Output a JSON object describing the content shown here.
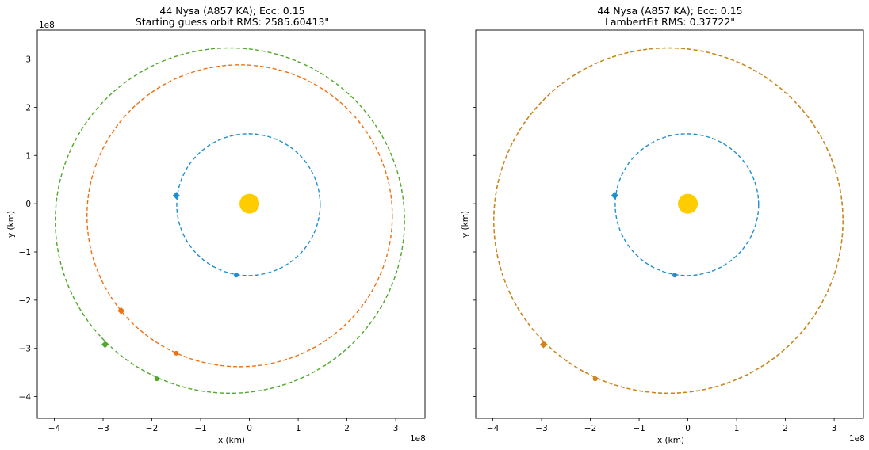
{
  "chart_data": [
    {
      "type": "scatter",
      "title_line1": "44 Nysa (A857 KA); Ecc: 0.15",
      "title_line2": "Starting guess orbit RMS: 2585.60413\"",
      "xlabel": "x (km)",
      "ylabel": "y (km)",
      "x_offset_label": "1e8",
      "y_offset_label": "1e8",
      "xlim": [
        -4.35,
        3.6
      ],
      "ylim": [
        -4.45,
        3.6
      ],
      "xticks": [
        -4,
        -3,
        -2,
        -1,
        0,
        1,
        2,
        3
      ],
      "yticks": [
        -4,
        -3,
        -2,
        -1,
        0,
        1,
        2,
        3
      ],
      "xtick_labels": [
        "−4",
        "−3",
        "−2",
        "−1",
        "0",
        "1",
        "2",
        "3"
      ],
      "ytick_labels": [
        "−4",
        "−3",
        "−2",
        "−1",
        "0",
        "1",
        "2",
        "3"
      ],
      "show_y_ticklabels": true,
      "sun": {
        "x": 0,
        "y": 0,
        "color": "#ffcc00"
      },
      "orbits": [
        {
          "color": "#1f8fcc",
          "cx": -0.02,
          "cy": -0.02,
          "rx": 1.47,
          "ry": 1.47,
          "markers": [
            {
              "x": -1.5,
              "y": 0.17,
              "shape": "diamond"
            },
            {
              "x": -0.27,
              "y": -1.48,
              "shape": "dot"
            }
          ]
        },
        {
          "color": "#f07010",
          "cx": -0.2,
          "cy": -0.25,
          "rx": 3.13,
          "ry": 3.13,
          "markers": [
            {
              "x": -2.63,
              "y": -2.22,
              "shape": "diamond"
            },
            {
              "x": -1.5,
              "y": -3.1,
              "shape": "dot"
            }
          ]
        },
        {
          "color": "#50a828",
          "cx": -0.4,
          "cy": -0.35,
          "rx": 3.58,
          "ry": 3.58,
          "markers": [
            {
              "x": -2.96,
              "y": -2.92,
              "shape": "diamond"
            },
            {
              "x": -1.9,
              "y": -3.63,
              "shape": "dot"
            }
          ]
        }
      ]
    },
    {
      "type": "scatter",
      "title_line1": "44 Nysa (A857 KA); Ecc: 0.15",
      "title_line2": "LambertFit RMS: 0.37722\"",
      "xlabel": "x (km)",
      "ylabel": "y (km)",
      "x_offset_label": "1e8",
      "y_offset_label": "",
      "xlim": [
        -4.35,
        3.6
      ],
      "ylim": [
        -4.45,
        3.6
      ],
      "xticks": [
        -4,
        -3,
        -2,
        -1,
        0,
        1,
        2,
        3
      ],
      "yticks": [
        -4,
        -3,
        -2,
        -1,
        0,
        1,
        2,
        3
      ],
      "xtick_labels": [
        "−4",
        "−3",
        "−2",
        "−1",
        "0",
        "1",
        "2",
        "3"
      ],
      "ytick_labels": [
        "",
        "",
        "",
        "",
        "",
        "",
        "",
        ""
      ],
      "show_y_ticklabels": false,
      "sun": {
        "x": 0,
        "y": 0,
        "color": "#ffcc00"
      },
      "orbits": [
        {
          "color": "#1f8fcc",
          "cx": -0.02,
          "cy": -0.02,
          "rx": 1.47,
          "ry": 1.47,
          "markers": [
            {
              "x": -1.5,
              "y": 0.17,
              "shape": "diamond"
            },
            {
              "x": -0.27,
              "y": -1.48,
              "shape": "dot"
            }
          ]
        },
        {
          "color": "#50a828",
          "cx": -0.4,
          "cy": -0.35,
          "rx": 3.58,
          "ry": 3.58,
          "markers": [
            {
              "x": -2.96,
              "y": -2.92,
              "shape": "diamond"
            },
            {
              "x": -1.9,
              "y": -3.63,
              "shape": "dot"
            }
          ]
        },
        {
          "color": "#d88018",
          "cx": -0.4,
          "cy": -0.35,
          "rx": 3.58,
          "ry": 3.58,
          "markers": [
            {
              "x": -2.96,
              "y": -2.92,
              "shape": "diamond"
            },
            {
              "x": -1.9,
              "y": -3.63,
              "shape": "dot"
            }
          ]
        }
      ]
    }
  ]
}
